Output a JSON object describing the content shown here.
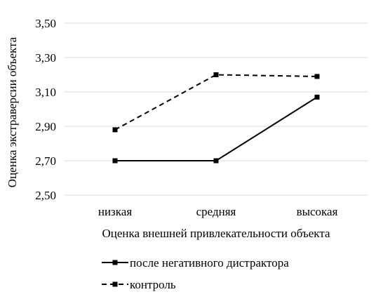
{
  "chart_data": {
    "type": "line",
    "title": "",
    "xlabel": "Оценка внешней привлекательности объекта",
    "ylabel": "Оценка экстраверсии объекта",
    "categories": [
      "низкая",
      "средняя",
      "высокая"
    ],
    "ylim": [
      2.5,
      3.5
    ],
    "yticks": [
      "2,50",
      "2,70",
      "2,90",
      "3,10",
      "3,30",
      "3,50"
    ],
    "grid": true,
    "legend_position": "bottom",
    "series": [
      {
        "name": "после негативного дистрактора",
        "values": [
          2.7,
          2.7,
          3.07
        ],
        "style": "solid",
        "color": "#000000"
      },
      {
        "name": "контроль",
        "values": [
          2.88,
          3.2,
          3.19
        ],
        "style": "dashed",
        "color": "#000000"
      }
    ]
  }
}
